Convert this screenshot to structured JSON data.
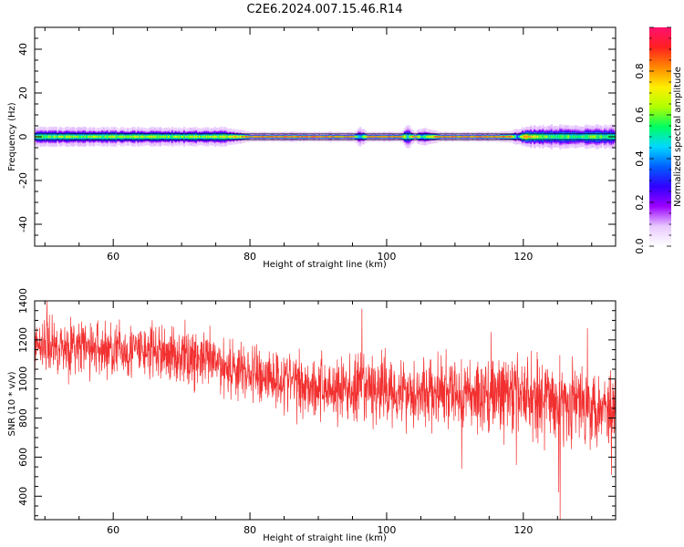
{
  "title": "C2E6.2024.007.15.46.R14",
  "colors": {
    "snr_line": "#f23030",
    "frame": "#000000",
    "colormap": [
      "#ffffff",
      "#e8c8ff",
      "#9b00ff",
      "#3000ff",
      "#0060ff",
      "#00d8ff",
      "#00ff60",
      "#b0ff00",
      "#ffee00",
      "#ff8800",
      "#ff2020",
      "#ff1070"
    ]
  },
  "chart_data": [
    {
      "type": "heatmap",
      "xlabel": "Height of straight line (km)",
      "ylabel": "Frequency (Hz)",
      "xlim": [
        48.5,
        133.5
      ],
      "ylim": [
        -50,
        50
      ],
      "xticks": [
        60,
        80,
        100,
        120
      ],
      "yticks": [
        -40,
        -20,
        0,
        20,
        40
      ],
      "colorbar": {
        "label": "Normalized spectral amplitude",
        "range": [
          0,
          1
        ],
        "ticks": [
          0.0,
          0.2,
          0.4,
          0.6,
          0.8
        ]
      },
      "band_profile": {
        "heights": [
          49,
          52,
          56,
          60,
          64,
          68,
          72,
          76,
          78,
          80,
          84,
          88,
          92,
          95,
          96,
          97,
          100,
          102,
          103,
          104,
          105,
          108,
          112,
          116,
          118,
          119,
          120,
          121,
          124,
          126,
          128,
          130,
          133
        ],
        "center_amplitude": [
          0.6,
          0.62,
          0.6,
          0.62,
          0.63,
          0.62,
          0.63,
          0.65,
          0.75,
          0.92,
          0.95,
          0.96,
          0.95,
          0.9,
          0.4,
          0.9,
          0.95,
          0.9,
          0.5,
          0.9,
          0.5,
          0.95,
          0.95,
          0.95,
          0.9,
          0.4,
          0.85,
          0.7,
          0.55,
          0.6,
          0.55,
          0.6,
          0.55
        ],
        "halfwidth_hz": [
          3,
          3,
          3,
          3,
          3,
          3,
          3,
          3,
          2,
          1,
          1,
          1,
          1,
          1,
          3,
          1,
          1,
          1,
          4,
          1,
          3,
          1,
          1,
          1,
          1.5,
          2.5,
          3,
          3.5,
          4,
          4,
          4,
          4,
          4
        ]
      }
    },
    {
      "type": "line",
      "xlabel": "Height of straight line (km)",
      "ylabel": "SNR (10 * v/v)",
      "xlim": [
        48.5,
        133.5
      ],
      "ylim": [
        280,
        1400
      ],
      "xticks": [
        60,
        80,
        100,
        120
      ],
      "yticks": [
        400,
        600,
        800,
        1000,
        1200,
        1400
      ],
      "series": [
        {
          "trend_x": [
            49,
            55,
            60,
            65,
            70,
            75,
            80,
            85,
            90,
            95,
            100,
            105,
            110,
            115,
            120,
            125,
            130,
            133
          ],
          "trend_y": [
            1180,
            1160,
            1150,
            1140,
            1120,
            1080,
            1030,
            1000,
            960,
            940,
            950,
            930,
            920,
            920,
            920,
            890,
            870,
            860
          ],
          "spread": [
            120,
            130,
            130,
            130,
            130,
            130,
            140,
            140,
            150,
            160,
            160,
            160,
            170,
            170,
            180,
            180,
            180,
            180
          ],
          "spikes": [
            {
              "x": 50.3,
              "y": 1400
            },
            {
              "x": 96.4,
              "y": 1360
            },
            {
              "x": 129.4,
              "y": 1260
            },
            {
              "x": 115.3,
              "y": 1240
            },
            {
              "x": 125.4,
              "y": 280
            },
            {
              "x": 125.2,
              "y": 420
            },
            {
              "x": 119.0,
              "y": 560
            },
            {
              "x": 132.9,
              "y": 510
            },
            {
              "x": 111.0,
              "y": 540
            }
          ]
        }
      ]
    }
  ]
}
